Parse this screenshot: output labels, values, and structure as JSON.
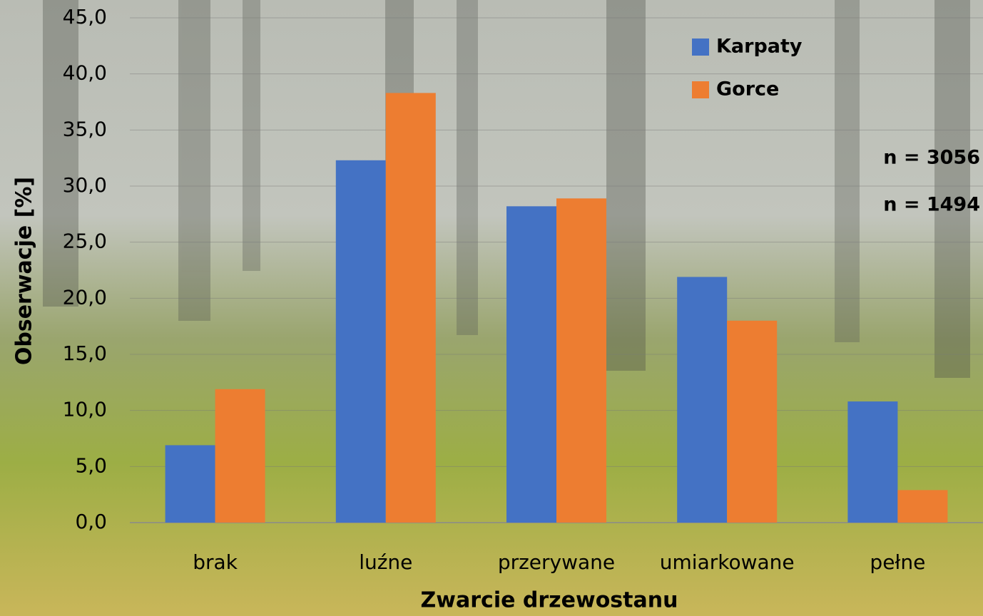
{
  "chart_data": {
    "type": "bar",
    "x_label": "Zwarcie drzewostanu",
    "y_label": "Obserwacje [%]",
    "categories": [
      "brak",
      "luźne",
      "przerywane",
      "umiarkowane",
      "pełne"
    ],
    "series": [
      {
        "name": "Karpaty",
        "color": "#4472c4",
        "values": [
          6.9,
          32.3,
          28.2,
          21.9,
          10.8
        ]
      },
      {
        "name": "Gorce",
        "color": "#ed7d31",
        "values": [
          11.9,
          38.3,
          28.9,
          18.0,
          2.9
        ]
      }
    ],
    "ylim": [
      0,
      45
    ],
    "yticks": [
      {
        "value": 0,
        "label": "0,0"
      },
      {
        "value": 5,
        "label": "5,0"
      },
      {
        "value": 10,
        "label": "10,0"
      },
      {
        "value": 15,
        "label": "15,0"
      },
      {
        "value": 20,
        "label": "20,0"
      },
      {
        "value": 25,
        "label": "25,0"
      },
      {
        "value": 30,
        "label": "30,0"
      },
      {
        "value": 35,
        "label": "35,0"
      },
      {
        "value": 40,
        "label": "40,0"
      },
      {
        "value": 45,
        "label": "45,0"
      }
    ],
    "grid": true,
    "legend": "top-right",
    "annotations": [
      "n = 3056",
      "n = 1494"
    ]
  }
}
